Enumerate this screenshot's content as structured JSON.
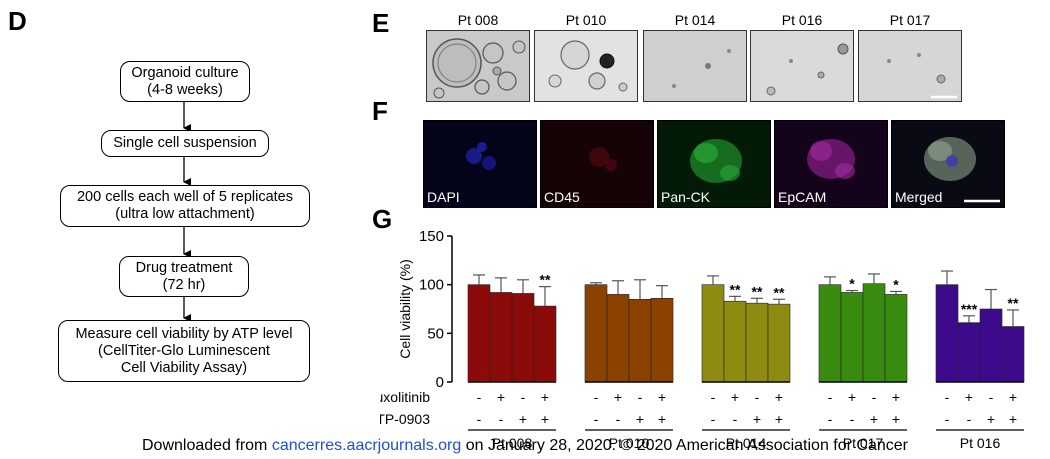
{
  "panels": {
    "d": "D",
    "e": "E",
    "f": "F",
    "g": "G"
  },
  "flowchart": {
    "steps": [
      {
        "line1": "Organoid culture",
        "line2": "(4-8 weeks)"
      },
      {
        "line1": "Single cell suspension",
        "line2": ""
      },
      {
        "line1": "200 cells each well of 5 replicates",
        "line2": "(ultra low attachment)"
      },
      {
        "line1": "Drug treatment",
        "line2": "(72 hr)"
      },
      {
        "line1": "Measure cell viability by ATP level",
        "line2": "(CellTiter-Glo Luminescent",
        "line3": "Cell Viability Assay)"
      }
    ]
  },
  "organoid_images": {
    "labels": [
      "Pt 008",
      "Pt 010",
      "Pt 014",
      "Pt 016",
      "Pt 017"
    ]
  },
  "fluorescence_images": {
    "labels": [
      "DAPI",
      "CD45",
      "Pan-CK",
      "EpCAM",
      "Merged"
    ]
  },
  "chart_data": {
    "type": "bar",
    "ylabel": "Cell viability (%)",
    "ylim": [
      0,
      150
    ],
    "yticks": [
      0,
      50,
      100,
      150
    ],
    "row_labels": [
      "Ruxolitinib",
      "TP-0903"
    ],
    "ruxolitinib": [
      "-",
      "+",
      "-",
      "+"
    ],
    "tp0903": [
      "-",
      "-",
      "+",
      "+"
    ],
    "groups": [
      {
        "name": "Pt 008",
        "color": "#8b0a0a",
        "values": [
          100,
          92,
          91,
          78
        ],
        "errors": [
          10,
          15,
          14,
          20
        ],
        "sig": [
          "",
          "",
          "",
          "**"
        ]
      },
      {
        "name": "Pt 010",
        "color": "#8b4200",
        "values": [
          100,
          90,
          85,
          86
        ],
        "errors": [
          2,
          14,
          20,
          13
        ],
        "sig": [
          "",
          "",
          "",
          ""
        ]
      },
      {
        "name": "Pt 014",
        "color": "#8e8c10",
        "values": [
          100,
          83,
          81,
          80
        ],
        "errors": [
          9,
          5,
          5,
          5
        ],
        "sig": [
          "",
          "**",
          "**",
          "**"
        ]
      },
      {
        "name": "Pt 017",
        "color": "#3a8c10",
        "values": [
          100,
          92,
          101,
          90
        ],
        "errors": [
          8,
          2,
          10,
          3
        ],
        "sig": [
          "",
          "*",
          "",
          "*"
        ]
      },
      {
        "name": "Pt 016",
        "color": "#3d0a8c",
        "values": [
          100,
          61,
          75,
          57
        ],
        "errors": [
          14,
          7,
          20,
          17
        ],
        "sig": [
          "",
          "***",
          "",
          "**"
        ]
      }
    ]
  },
  "footer": {
    "prefix": "Downloaded from",
    "link": "cancerres.aacrjournals.org",
    "suffix": "on January 28, 2020. © 2020 American Association for Cancer"
  }
}
